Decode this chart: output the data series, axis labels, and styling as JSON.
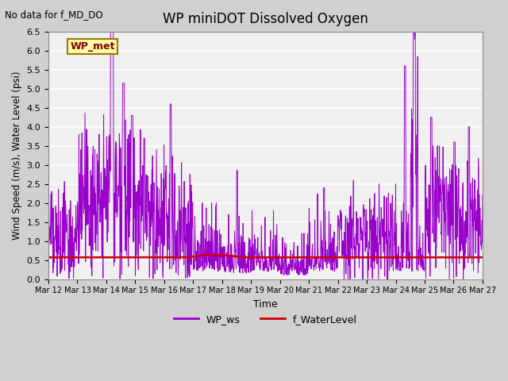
{
  "title": "WP miniDOT Dissolved Oxygen",
  "no_data_text": "No data for f_MD_DO",
  "annotation_text": "WP_met",
  "ylabel": "Wind Speed (m/s), Water Level (psi)",
  "xlabel": "Time",
  "ylim_min": 0.0,
  "ylim_max": 6.5,
  "ws_color": "#9900cc",
  "wl_color": "#cc0000",
  "legend_ws": "WP_ws",
  "legend_wl": "f_WaterLevel",
  "fig_facecolor": "#d0d0d0",
  "ax_facecolor": "#f0f0f0",
  "xtick_labels": [
    "Mar 12",
    "Mar 13",
    "Mar 14",
    "Mar 15",
    "Mar 16",
    "Mar 17",
    "Mar 18",
    "Mar 19",
    "Mar 20",
    "Mar 21",
    "Mar 22",
    "Mar 23",
    "Mar 24",
    "Mar 25",
    "Mar 26",
    "Mar 27"
  ],
  "ytick_vals": [
    0.0,
    0.5,
    1.0,
    1.5,
    2.0,
    2.5,
    3.0,
    3.5,
    4.0,
    4.5,
    5.0,
    5.5,
    6.0,
    6.5
  ]
}
